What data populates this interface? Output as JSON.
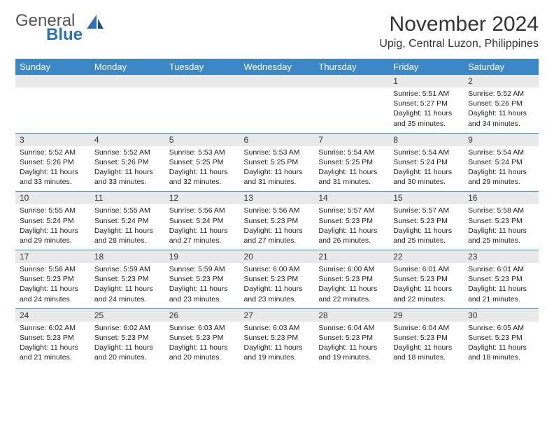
{
  "logo": {
    "general": "General",
    "blue": "Blue"
  },
  "title": "November 2024",
  "subtitle": "Upig, Central Luzon, Philippines",
  "styling": {
    "header_bg": "#3b87c8",
    "header_fg": "#ffffff",
    "daynum_bg": "#e9e9e9",
    "row_border": "#3b87c8",
    "body_font_size": 10.5,
    "title_font_size": 30,
    "subtitle_font_size": 16,
    "logo_font_size": 24
  },
  "dayHeaders": [
    "Sunday",
    "Monday",
    "Tuesday",
    "Wednesday",
    "Thursday",
    "Friday",
    "Saturday"
  ],
  "weeks": [
    [
      {
        "n": "",
        "lines": []
      },
      {
        "n": "",
        "lines": []
      },
      {
        "n": "",
        "lines": []
      },
      {
        "n": "",
        "lines": []
      },
      {
        "n": "",
        "lines": []
      },
      {
        "n": "1",
        "lines": [
          "Sunrise: 5:51 AM",
          "Sunset: 5:27 PM",
          "Daylight: 11 hours and 35 minutes."
        ]
      },
      {
        "n": "2",
        "lines": [
          "Sunrise: 5:52 AM",
          "Sunset: 5:26 PM",
          "Daylight: 11 hours and 34 minutes."
        ]
      }
    ],
    [
      {
        "n": "3",
        "lines": [
          "Sunrise: 5:52 AM",
          "Sunset: 5:26 PM",
          "Daylight: 11 hours and 33 minutes."
        ]
      },
      {
        "n": "4",
        "lines": [
          "Sunrise: 5:52 AM",
          "Sunset: 5:26 PM",
          "Daylight: 11 hours and 33 minutes."
        ]
      },
      {
        "n": "5",
        "lines": [
          "Sunrise: 5:53 AM",
          "Sunset: 5:25 PM",
          "Daylight: 11 hours and 32 minutes."
        ]
      },
      {
        "n": "6",
        "lines": [
          "Sunrise: 5:53 AM",
          "Sunset: 5:25 PM",
          "Daylight: 11 hours and 31 minutes."
        ]
      },
      {
        "n": "7",
        "lines": [
          "Sunrise: 5:54 AM",
          "Sunset: 5:25 PM",
          "Daylight: 11 hours and 31 minutes."
        ]
      },
      {
        "n": "8",
        "lines": [
          "Sunrise: 5:54 AM",
          "Sunset: 5:24 PM",
          "Daylight: 11 hours and 30 minutes."
        ]
      },
      {
        "n": "9",
        "lines": [
          "Sunrise: 5:54 AM",
          "Sunset: 5:24 PM",
          "Daylight: 11 hours and 29 minutes."
        ]
      }
    ],
    [
      {
        "n": "10",
        "lines": [
          "Sunrise: 5:55 AM",
          "Sunset: 5:24 PM",
          "Daylight: 11 hours and 29 minutes."
        ]
      },
      {
        "n": "11",
        "lines": [
          "Sunrise: 5:55 AM",
          "Sunset: 5:24 PM",
          "Daylight: 11 hours and 28 minutes."
        ]
      },
      {
        "n": "12",
        "lines": [
          "Sunrise: 5:56 AM",
          "Sunset: 5:24 PM",
          "Daylight: 11 hours and 27 minutes."
        ]
      },
      {
        "n": "13",
        "lines": [
          "Sunrise: 5:56 AM",
          "Sunset: 5:23 PM",
          "Daylight: 11 hours and 27 minutes."
        ]
      },
      {
        "n": "14",
        "lines": [
          "Sunrise: 5:57 AM",
          "Sunset: 5:23 PM",
          "Daylight: 11 hours and 26 minutes."
        ]
      },
      {
        "n": "15",
        "lines": [
          "Sunrise: 5:57 AM",
          "Sunset: 5:23 PM",
          "Daylight: 11 hours and 25 minutes."
        ]
      },
      {
        "n": "16",
        "lines": [
          "Sunrise: 5:58 AM",
          "Sunset: 5:23 PM",
          "Daylight: 11 hours and 25 minutes."
        ]
      }
    ],
    [
      {
        "n": "17",
        "lines": [
          "Sunrise: 5:58 AM",
          "Sunset: 5:23 PM",
          "Daylight: 11 hours and 24 minutes."
        ]
      },
      {
        "n": "18",
        "lines": [
          "Sunrise: 5:59 AM",
          "Sunset: 5:23 PM",
          "Daylight: 11 hours and 24 minutes."
        ]
      },
      {
        "n": "19",
        "lines": [
          "Sunrise: 5:59 AM",
          "Sunset: 5:23 PM",
          "Daylight: 11 hours and 23 minutes."
        ]
      },
      {
        "n": "20",
        "lines": [
          "Sunrise: 6:00 AM",
          "Sunset: 5:23 PM",
          "Daylight: 11 hours and 23 minutes."
        ]
      },
      {
        "n": "21",
        "lines": [
          "Sunrise: 6:00 AM",
          "Sunset: 5:23 PM",
          "Daylight: 11 hours and 22 minutes."
        ]
      },
      {
        "n": "22",
        "lines": [
          "Sunrise: 6:01 AM",
          "Sunset: 5:23 PM",
          "Daylight: 11 hours and 22 minutes."
        ]
      },
      {
        "n": "23",
        "lines": [
          "Sunrise: 6:01 AM",
          "Sunset: 5:23 PM",
          "Daylight: 11 hours and 21 minutes."
        ]
      }
    ],
    [
      {
        "n": "24",
        "lines": [
          "Sunrise: 6:02 AM",
          "Sunset: 5:23 PM",
          "Daylight: 11 hours and 21 minutes."
        ]
      },
      {
        "n": "25",
        "lines": [
          "Sunrise: 6:02 AM",
          "Sunset: 5:23 PM",
          "Daylight: 11 hours and 20 minutes."
        ]
      },
      {
        "n": "26",
        "lines": [
          "Sunrise: 6:03 AM",
          "Sunset: 5:23 PM",
          "Daylight: 11 hours and 20 minutes."
        ]
      },
      {
        "n": "27",
        "lines": [
          "Sunrise: 6:03 AM",
          "Sunset: 5:23 PM",
          "Daylight: 11 hours and 19 minutes."
        ]
      },
      {
        "n": "28",
        "lines": [
          "Sunrise: 6:04 AM",
          "Sunset: 5:23 PM",
          "Daylight: 11 hours and 19 minutes."
        ]
      },
      {
        "n": "29",
        "lines": [
          "Sunrise: 6:04 AM",
          "Sunset: 5:23 PM",
          "Daylight: 11 hours and 18 minutes."
        ]
      },
      {
        "n": "30",
        "lines": [
          "Sunrise: 6:05 AM",
          "Sunset: 5:23 PM",
          "Daylight: 11 hours and 18 minutes."
        ]
      }
    ]
  ]
}
